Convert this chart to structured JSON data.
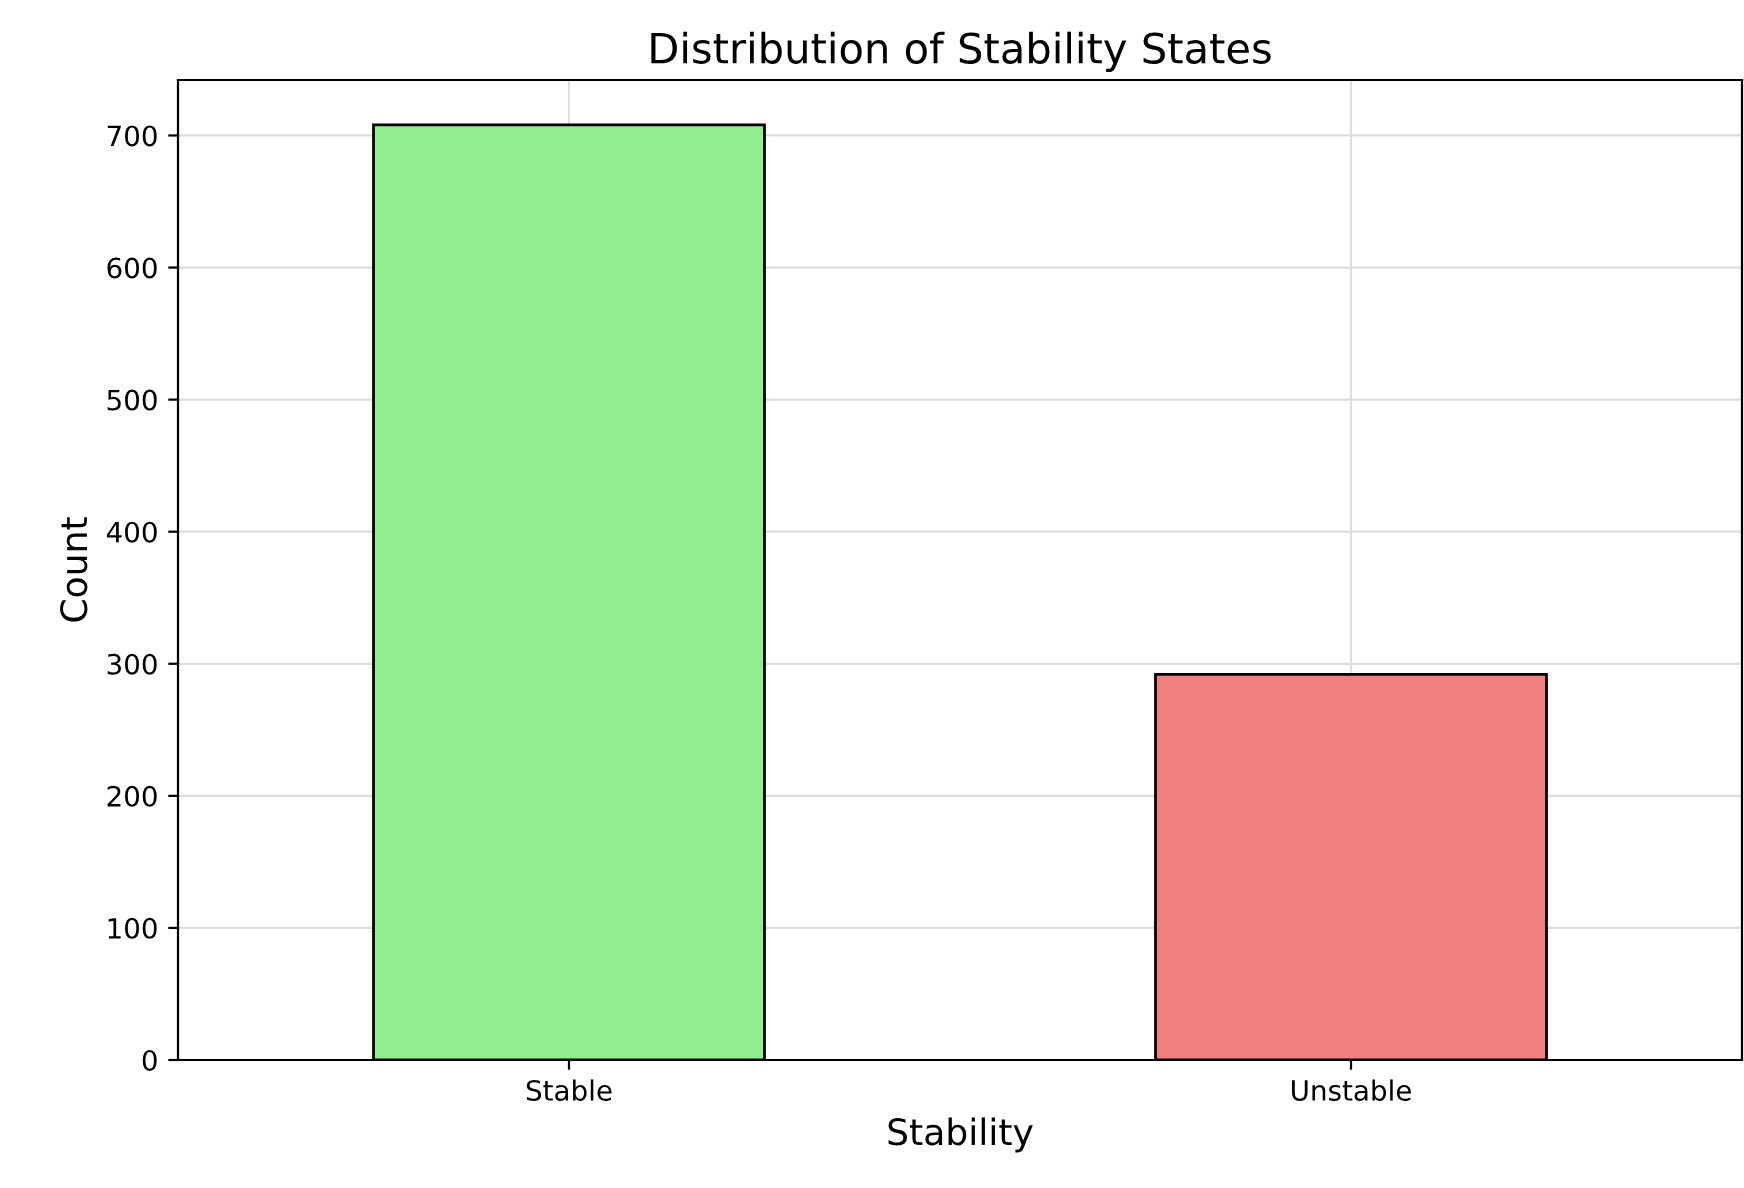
{
  "chart_data": {
    "type": "bar",
    "title": "Distribution of Stability States",
    "xlabel": "Stability",
    "ylabel": "Count",
    "categories": [
      "Stable",
      "Unstable"
    ],
    "values": [
      708,
      292
    ],
    "colors": [
      "#90ee90",
      "#f08080"
    ],
    "ylim": [
      0,
      742
    ],
    "yticks": [
      0,
      100,
      200,
      300,
      400,
      500,
      600,
      700
    ],
    "grid": true
  }
}
